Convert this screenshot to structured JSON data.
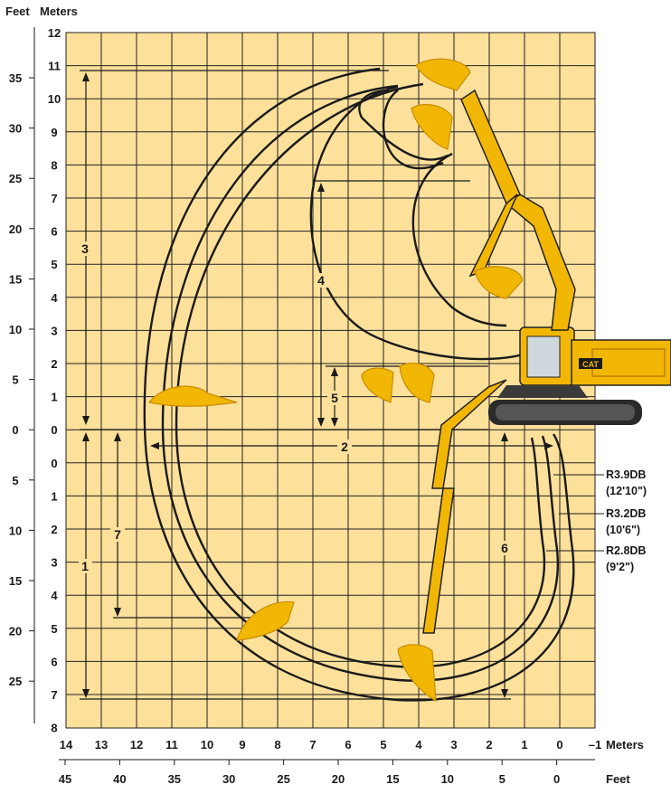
{
  "header": {
    "feet_label": "Feet",
    "meters_label": "Meters"
  },
  "colors": {
    "background": "#fde09a",
    "grid": "#222222",
    "machine": "#f2b705",
    "machine_dark": "#c98d00",
    "curve": "#1a1a1a"
  },
  "left_axis": {
    "meters_labels": [
      "12",
      "11",
      "10",
      "9",
      "8",
      "7",
      "6",
      "5",
      "4",
      "3",
      "2",
      "1",
      "0",
      "0",
      "1",
      "2",
      "3",
      "4",
      "5",
      "6",
      "7",
      "8"
    ],
    "feet_labels": [
      "35",
      "30",
      "25",
      "20",
      "15",
      "10",
      "5",
      "0",
      "5",
      "10",
      "15",
      "20",
      "25"
    ]
  },
  "bottom_axis": {
    "meters_labels": [
      "14",
      "13",
      "12",
      "11",
      "10",
      "9",
      "8",
      "7",
      "6",
      "5",
      "4",
      "3",
      "2",
      "1",
      "0",
      "–1"
    ],
    "meters_unit": "Meters",
    "feet_labels": [
      "45",
      "40",
      "35",
      "30",
      "25",
      "20",
      "15",
      "10",
      "5",
      "0"
    ],
    "feet_unit": "Feet"
  },
  "callouts": [
    "1",
    "2",
    "3",
    "4",
    "5",
    "6",
    "7"
  ],
  "boom_labels": [
    {
      "name": "R3.9DB",
      "length": "(12'10\")"
    },
    {
      "name": "R3.2DB",
      "length": "(10'6\")"
    },
    {
      "name": "R2.8DB",
      "length": "(9'2\")"
    }
  ],
  "machine": {
    "brand": "CAT"
  },
  "icons": [
    "excavator-body-icon",
    "excavator-boom-icon",
    "bucket-icon",
    "cat-logo-icon"
  ]
}
